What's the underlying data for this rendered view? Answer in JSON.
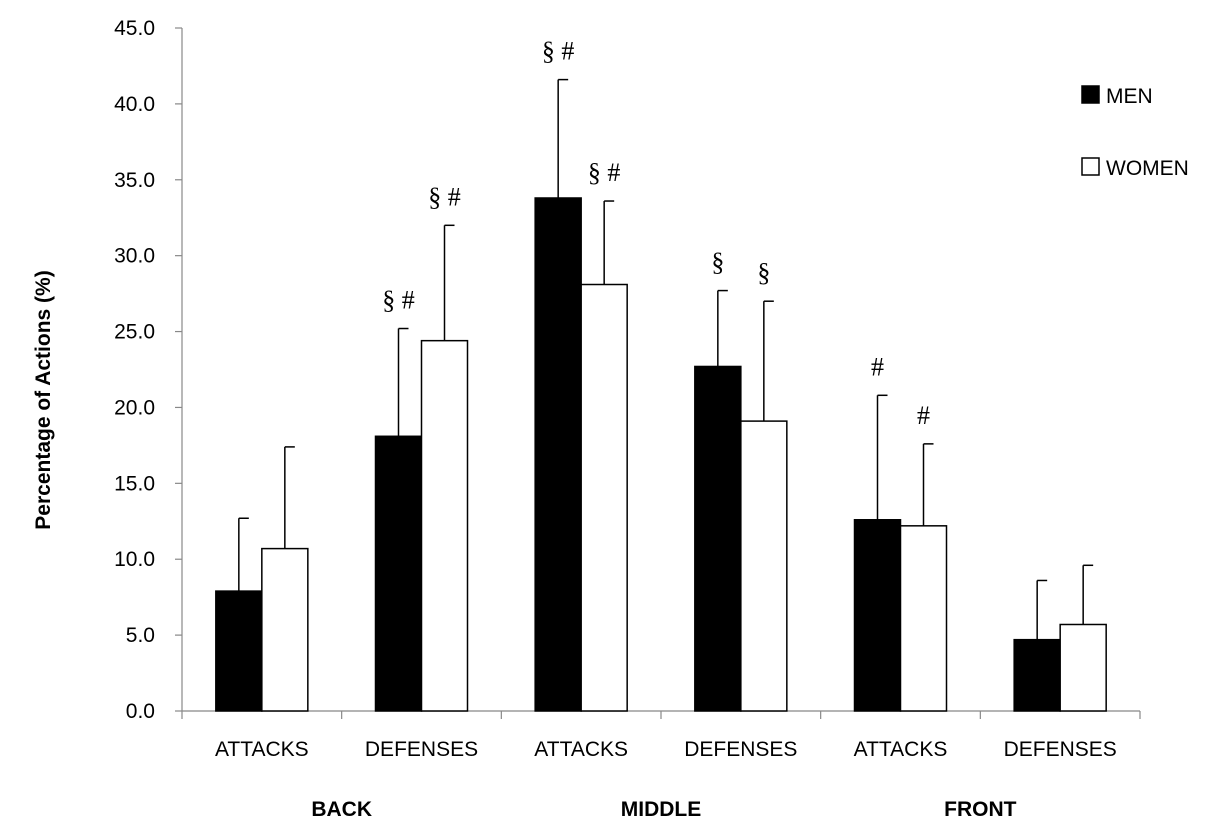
{
  "chart_data": {
    "type": "bar",
    "ylabel": "Percentage of Actions  (%)",
    "ylim": [
      0,
      45
    ],
    "yticks": [
      "0.0",
      "5.0",
      "10.0",
      "15.0",
      "20.0",
      "25.0",
      "30.0",
      "35.0",
      "40.0",
      "45.0"
    ],
    "categories": [
      "ATTACKS",
      "DEFENSES",
      "ATTACKS",
      "DEFENSES",
      "ATTACKS",
      "DEFENSES"
    ],
    "groups": [
      {
        "label": "BACK",
        "span": [
          0,
          1
        ]
      },
      {
        "label": "MIDDLE",
        "span": [
          2,
          3
        ]
      },
      {
        "label": "FRONT",
        "span": [
          4,
          5
        ]
      }
    ],
    "series": [
      {
        "name": "MEN",
        "color": "#000000",
        "values": [
          7.9,
          18.1,
          33.8,
          22.7,
          12.6,
          4.7
        ],
        "errors": [
          4.8,
          7.1,
          7.8,
          5.0,
          8.2,
          3.9
        ],
        "annotations": [
          "",
          "§  #",
          "§ #",
          "§",
          "#",
          ""
        ]
      },
      {
        "name": "WOMEN",
        "color": "#ffffff",
        "values": [
          10.7,
          24.4,
          28.1,
          19.1,
          12.2,
          5.7
        ],
        "errors": [
          6.7,
          7.6,
          5.5,
          7.9,
          5.4,
          3.9
        ],
        "annotations": [
          "",
          "§ #",
          "§ #",
          "§",
          "#",
          ""
        ]
      }
    ],
    "legend_position": "top-right",
    "grid": false
  }
}
